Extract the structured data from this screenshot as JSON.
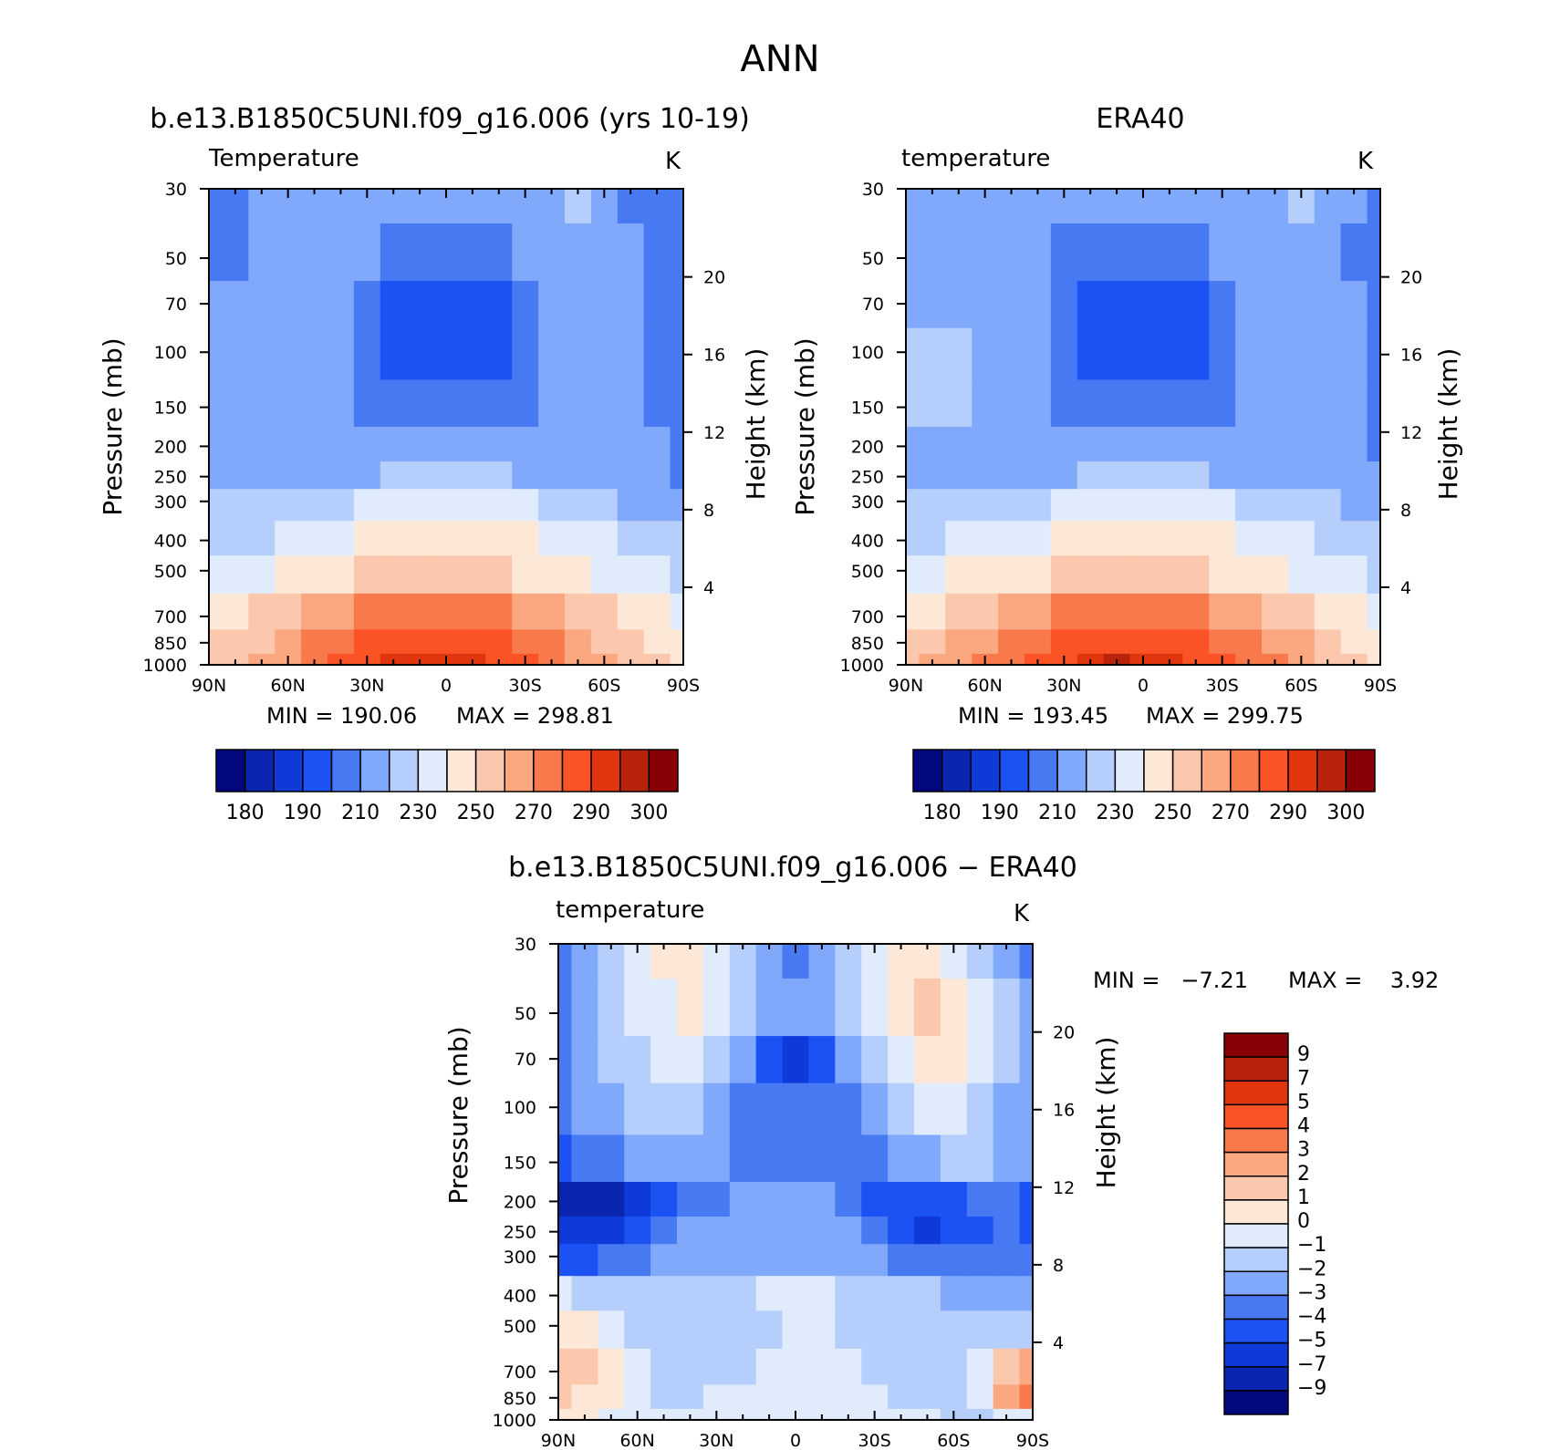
{
  "figure": {
    "title": "ANN"
  },
  "colors": {
    "abs_palette": [
      "#04087f",
      "#0a25b0",
      "#0d3ad9",
      "#1c52f3",
      "#4679f2",
      "#80a8fb",
      "#b6cefc",
      "#e0ecfb",
      "#fde8d7",
      "#fcc8ad",
      "#fba780",
      "#f8794c",
      "#fb5325",
      "#e0350f",
      "#b8230b",
      "#880005"
    ],
    "diff_palette": [
      "#04087f",
      "#0a25b0",
      "#0d3ad9",
      "#1c52f3",
      "#4679f2",
      "#80a8fb",
      "#b6cefc",
      "#e0ecfb",
      "#fde8d7",
      "#fcc8ad",
      "#fba780",
      "#f8794c",
      "#fb5325",
      "#e0350f",
      "#b8230b",
      "#880005"
    ]
  },
  "chart_data": [
    {
      "type": "heatmap",
      "title": "b.e13.B1850C5UNI.f09_g16.006 (yrs 10-19)",
      "subtitle_left": "Temperature",
      "subtitle_right": "K",
      "ylabel": "Pressure (mb)",
      "ylabel_right": "Height (km)",
      "x_ticklabels": [
        "90N",
        "60N",
        "30N",
        "0",
        "30S",
        "60S",
        "90S"
      ],
      "y_ticklabels": [
        "30",
        "50",
        "70",
        "100",
        "150",
        "200",
        "250",
        "300",
        "400",
        "500",
        "700",
        "850",
        "1000"
      ],
      "y_right_ticklabels": [
        "20",
        "16",
        "12",
        "8",
        "4"
      ],
      "min_label": "MIN = 190.06",
      "max_label": "MAX = 298.81",
      "contour_levels": [
        180,
        185,
        190,
        200,
        210,
        220,
        230,
        240,
        250,
        260,
        270,
        280,
        290,
        295,
        300
      ],
      "colorbar_labels": [
        "180",
        "190",
        "210",
        "230",
        "250",
        "270",
        "290",
        "300"
      ],
      "band_levels_estimated": [
        {
          "p": 30,
          "values": [
            4,
            4,
            5,
            5,
            5,
            5,
            5,
            5,
            5,
            5,
            5,
            5,
            5,
            5,
            6,
            5,
            4,
            4,
            4
          ]
        },
        {
          "p": 50,
          "values": [
            4,
            4,
            5,
            5,
            5,
            5,
            5,
            4,
            4,
            4,
            4,
            4,
            5,
            5,
            5,
            5,
            5,
            4,
            4
          ]
        },
        {
          "p": 70,
          "values": [
            5,
            5,
            5,
            5,
            5,
            5,
            4,
            3,
            3,
            3,
            3,
            3,
            4,
            5,
            5,
            5,
            5,
            4,
            4
          ]
        },
        {
          "p": 100,
          "values": [
            5,
            5,
            5,
            5,
            5,
            5,
            4,
            3,
            3,
            3,
            3,
            3,
            4,
            5,
            5,
            5,
            5,
            4,
            4
          ]
        },
        {
          "p": 150,
          "values": [
            5,
            5,
            5,
            5,
            5,
            5,
            4,
            4,
            4,
            4,
            4,
            4,
            4,
            5,
            5,
            5,
            5,
            4,
            4
          ]
        },
        {
          "p": 200,
          "values": [
            5,
            5,
            5,
            5,
            5,
            5,
            5,
            5,
            5,
            5,
            5,
            5,
            5,
            5,
            5,
            5,
            5,
            5,
            4
          ]
        },
        {
          "p": 250,
          "values": [
            5,
            5,
            5,
            5,
            5,
            5,
            5,
            6,
            6,
            6,
            6,
            6,
            5,
            5,
            5,
            5,
            5,
            5,
            4
          ]
        },
        {
          "p": 300,
          "values": [
            6,
            6,
            6,
            6,
            6,
            6,
            7,
            7,
            7,
            7,
            7,
            7,
            7,
            6,
            6,
            6,
            5,
            5,
            5
          ]
        },
        {
          "p": 400,
          "values": [
            6,
            6,
            6,
            7,
            7,
            7,
            8,
            8,
            8,
            8,
            8,
            8,
            8,
            7,
            7,
            7,
            6,
            6,
            6
          ]
        },
        {
          "p": 500,
          "values": [
            7,
            7,
            7,
            8,
            8,
            8,
            9,
            9,
            9,
            9,
            9,
            9,
            8,
            8,
            8,
            7,
            7,
            7,
            6
          ]
        },
        {
          "p": 700,
          "values": [
            8,
            8,
            9,
            9,
            10,
            10,
            11,
            11,
            11,
            11,
            11,
            11,
            10,
            10,
            9,
            9,
            8,
            8,
            7
          ]
        },
        {
          "p": 850,
          "values": [
            9,
            9,
            9,
            10,
            11,
            11,
            12,
            12,
            12,
            12,
            12,
            12,
            11,
            11,
            10,
            9,
            9,
            8,
            8
          ]
        },
        {
          "p": 1000,
          "values": [
            9,
            9,
            10,
            10,
            11,
            12,
            12,
            13,
            13,
            13,
            13,
            12,
            12,
            11,
            10,
            10,
            9,
            9,
            8
          ]
        }
      ]
    },
    {
      "type": "heatmap",
      "title": "ERA40",
      "subtitle_left": "temperature",
      "subtitle_right": "K",
      "ylabel": "Pressure (mb)",
      "ylabel_right": "Height (km)",
      "x_ticklabels": [
        "90N",
        "60N",
        "30N",
        "0",
        "30S",
        "60S",
        "90S"
      ],
      "y_ticklabels": [
        "30",
        "50",
        "70",
        "100",
        "150",
        "200",
        "250",
        "300",
        "400",
        "500",
        "700",
        "850",
        "1000"
      ],
      "y_right_ticklabels": [
        "20",
        "16",
        "12",
        "8",
        "4"
      ],
      "min_label": "MIN = 193.45",
      "max_label": "MAX = 299.75",
      "contour_levels": [
        180,
        185,
        190,
        200,
        210,
        220,
        230,
        240,
        250,
        260,
        270,
        280,
        290,
        295,
        300
      ],
      "colorbar_labels": [
        "180",
        "190",
        "210",
        "230",
        "250",
        "270",
        "290",
        "300"
      ],
      "band_levels_estimated": [
        {
          "p": 30,
          "values": [
            5,
            5,
            5,
            5,
            5,
            5,
            5,
            5,
            5,
            5,
            5,
            5,
            5,
            5,
            5,
            6,
            5,
            5,
            4
          ]
        },
        {
          "p": 50,
          "values": [
            5,
            5,
            5,
            5,
            5,
            5,
            4,
            4,
            4,
            4,
            4,
            4,
            5,
            5,
            5,
            5,
            5,
            4,
            4
          ]
        },
        {
          "p": 70,
          "values": [
            5,
            5,
            5,
            5,
            5,
            5,
            4,
            3,
            3,
            3,
            3,
            3,
            4,
            5,
            5,
            5,
            5,
            5,
            4
          ]
        },
        {
          "p": 100,
          "values": [
            6,
            6,
            6,
            5,
            5,
            5,
            4,
            3,
            3,
            3,
            3,
            3,
            4,
            5,
            5,
            5,
            5,
            5,
            4
          ]
        },
        {
          "p": 150,
          "values": [
            6,
            6,
            6,
            5,
            5,
            5,
            4,
            4,
            4,
            4,
            4,
            4,
            4,
            5,
            5,
            5,
            5,
            5,
            4
          ]
        },
        {
          "p": 200,
          "values": [
            5,
            5,
            5,
            5,
            5,
            5,
            5,
            5,
            5,
            5,
            5,
            5,
            5,
            5,
            5,
            5,
            5,
            5,
            4
          ]
        },
        {
          "p": 250,
          "values": [
            5,
            5,
            5,
            5,
            5,
            5,
            5,
            6,
            6,
            6,
            6,
            6,
            5,
            5,
            5,
            5,
            5,
            5,
            5
          ]
        },
        {
          "p": 300,
          "values": [
            6,
            6,
            6,
            6,
            6,
            6,
            7,
            7,
            7,
            7,
            7,
            7,
            7,
            6,
            6,
            6,
            6,
            5,
            5
          ]
        },
        {
          "p": 400,
          "values": [
            6,
            6,
            7,
            7,
            7,
            7,
            8,
            8,
            8,
            8,
            8,
            8,
            8,
            7,
            7,
            7,
            6,
            6,
            6
          ]
        },
        {
          "p": 500,
          "values": [
            7,
            7,
            8,
            8,
            8,
            8,
            9,
            9,
            9,
            9,
            9,
            9,
            8,
            8,
            8,
            7,
            7,
            7,
            6
          ]
        },
        {
          "p": 700,
          "values": [
            8,
            8,
            9,
            9,
            10,
            10,
            11,
            11,
            11,
            11,
            11,
            11,
            10,
            10,
            9,
            9,
            8,
            8,
            7
          ]
        },
        {
          "p": 850,
          "values": [
            9,
            9,
            10,
            10,
            11,
            11,
            12,
            12,
            12,
            12,
            12,
            12,
            11,
            11,
            10,
            10,
            9,
            8,
            8
          ]
        },
        {
          "p": 1000,
          "values": [
            9,
            10,
            10,
            11,
            11,
            12,
            12,
            13,
            14,
            13,
            13,
            12,
            12,
            11,
            11,
            10,
            9,
            9,
            8
          ]
        }
      ]
    },
    {
      "type": "heatmap",
      "title": "b.e13.B1850C5UNI.f09_g16.006 − ERA40",
      "subtitle_left": "temperature",
      "subtitle_right": "K",
      "ylabel": "Pressure (mb)",
      "ylabel_right": "Height (km)",
      "x_ticklabels": [
        "90N",
        "60N",
        "30N",
        "0",
        "30S",
        "60S",
        "90S"
      ],
      "y_ticklabels": [
        "30",
        "50",
        "70",
        "100",
        "150",
        "200",
        "250",
        "300",
        "400",
        "500",
        "700",
        "850",
        "1000"
      ],
      "y_right_ticklabels": [
        "20",
        "16",
        "12",
        "8",
        "4"
      ],
      "min_label": "MIN =   −7.21",
      "max_label": "MAX =    3.92",
      "contour_levels": [
        -9,
        -7,
        -5,
        -4,
        -3,
        -2,
        -1,
        0,
        1,
        2,
        3,
        4,
        5,
        7,
        9
      ],
      "colorbar_labels": [
        "9",
        "7",
        "5",
        "4",
        "3",
        "2",
        "1",
        "0",
        "−1",
        "−2",
        "−3",
        "−4",
        "−5",
        "−7",
        "−9"
      ],
      "band_levels_estimated": [
        {
          "p": 30,
          "values": [
            4,
            5,
            6,
            7,
            8,
            8,
            7,
            6,
            5,
            4,
            5,
            6,
            7,
            8,
            8,
            7,
            6,
            5,
            4
          ]
        },
        {
          "p": 50,
          "values": [
            4,
            5,
            6,
            7,
            7,
            8,
            7,
            6,
            5,
            5,
            5,
            6,
            7,
            8,
            9,
            8,
            7,
            6,
            5
          ]
        },
        {
          "p": 70,
          "values": [
            4,
            5,
            6,
            6,
            7,
            7,
            6,
            5,
            3,
            2,
            3,
            5,
            6,
            7,
            8,
            8,
            7,
            6,
            5
          ]
        },
        {
          "p": 100,
          "values": [
            4,
            5,
            5,
            6,
            6,
            6,
            5,
            4,
            4,
            4,
            4,
            4,
            5,
            6,
            7,
            7,
            6,
            5,
            5
          ]
        },
        {
          "p": 150,
          "values": [
            3,
            4,
            4,
            5,
            5,
            5,
            5,
            4,
            4,
            4,
            4,
            4,
            4,
            5,
            5,
            6,
            6,
            5,
            5
          ]
        },
        {
          "p": 200,
          "values": [
            1,
            1,
            1,
            2,
            3,
            4,
            4,
            5,
            5,
            5,
            5,
            4,
            3,
            3,
            3,
            3,
            4,
            4,
            3
          ]
        },
        {
          "p": 250,
          "values": [
            2,
            2,
            2,
            3,
            4,
            5,
            5,
            5,
            5,
            5,
            5,
            5,
            4,
            3,
            2,
            3,
            3,
            4,
            3
          ]
        },
        {
          "p": 300,
          "values": [
            3,
            3,
            4,
            4,
            5,
            5,
            5,
            5,
            5,
            5,
            5,
            5,
            5,
            4,
            4,
            4,
            4,
            4,
            4
          ]
        },
        {
          "p": 400,
          "values": [
            7,
            6,
            6,
            6,
            6,
            6,
            6,
            6,
            7,
            7,
            7,
            6,
            6,
            6,
            6,
            5,
            5,
            5,
            5
          ]
        },
        {
          "p": 500,
          "values": [
            8,
            8,
            7,
            6,
            6,
            6,
            6,
            6,
            6,
            7,
            7,
            6,
            6,
            6,
            6,
            6,
            6,
            6,
            6
          ]
        },
        {
          "p": 700,
          "values": [
            9,
            9,
            8,
            7,
            6,
            6,
            6,
            6,
            7,
            7,
            7,
            7,
            6,
            6,
            6,
            6,
            7,
            9,
            10
          ]
        },
        {
          "p": 850,
          "values": [
            9,
            8,
            8,
            7,
            6,
            6,
            7,
            7,
            7,
            7,
            7,
            7,
            7,
            6,
            6,
            6,
            7,
            10,
            11
          ]
        },
        {
          "p": 1000,
          "values": [
            8,
            8,
            7,
            7,
            7,
            7,
            7,
            7,
            7,
            7,
            7,
            7,
            7,
            7,
            7,
            6,
            6,
            7,
            7
          ]
        }
      ]
    }
  ]
}
